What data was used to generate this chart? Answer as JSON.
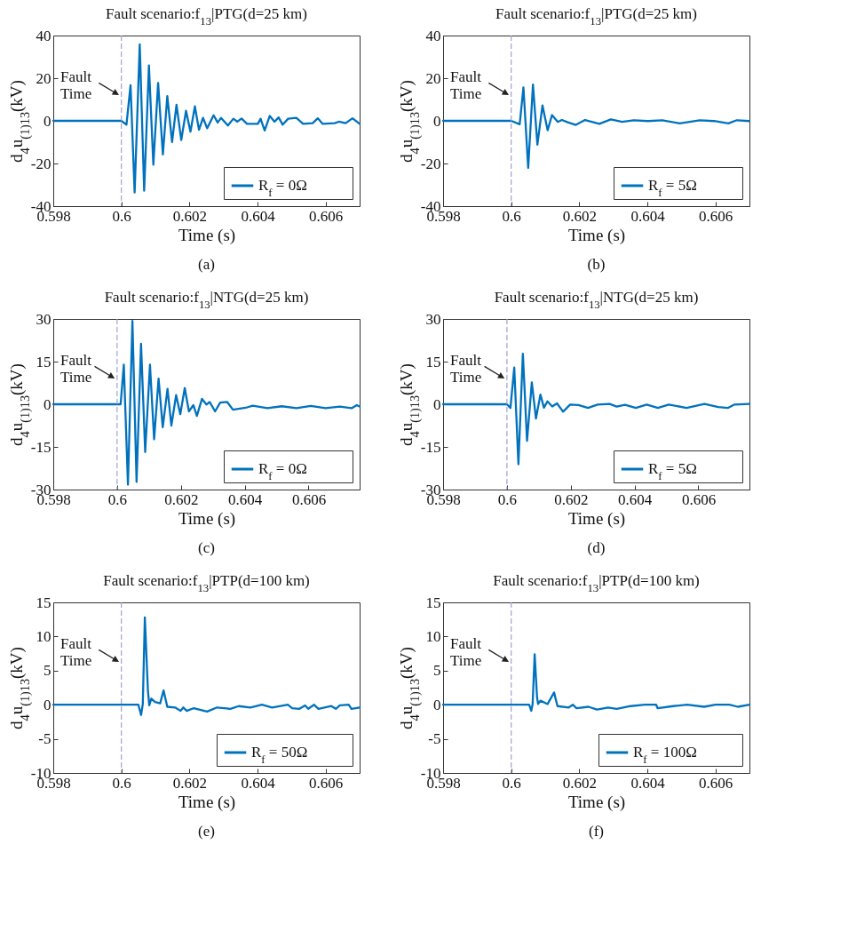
{
  "chart_data": [
    {
      "type": "line",
      "title": "Fault scenario:f$_{13}$|PTG(d=25 km)",
      "xlabel": "Time (s)",
      "ylabel": "d$_{4}$u$_{(1)13}$(kV)",
      "xlim": [
        0.598,
        0.607
      ],
      "xticks": [
        0.598,
        0.6,
        0.602,
        0.604,
        0.606
      ],
      "ylim": [
        -40,
        40
      ],
      "yticks": [
        -40,
        -20,
        0,
        20,
        40
      ],
      "legend": "bottom right",
      "series": [
        {
          "name": "R$_{f}$ = 0Ω",
          "color": "#0072bd",
          "x": [
            0.598,
            0.6,
            0.60015,
            0.60027,
            0.60039,
            0.60054,
            0.60067,
            0.60081,
            0.60094,
            0.60108,
            0.60122,
            0.60135,
            0.60149,
            0.60162,
            0.60176,
            0.6019,
            0.60203,
            0.60216,
            0.60228,
            0.6024,
            0.60252,
            0.60271,
            0.60283,
            0.60293,
            0.60313,
            0.60329,
            0.60341,
            0.60353,
            0.60369,
            0.60401,
            0.60409,
            0.60421,
            0.60436,
            0.6045,
            0.60462,
            0.60474,
            0.6049,
            0.60514,
            0.60534,
            0.60562,
            0.60577,
            0.60591,
            0.60627,
            0.60639,
            0.60659,
            0.60679,
            0.607
          ],
          "values": [
            0,
            0,
            -1.8,
            16.7,
            -33.6,
            35.9,
            -32.8,
            26,
            -20.6,
            17.8,
            -15.8,
            11.6,
            -9.9,
            7.5,
            -9,
            4.7,
            -5.1,
            6.8,
            -4.2,
            1.4,
            -3.5,
            2.6,
            -0.8,
            1.4,
            -2.2,
            1,
            -0.4,
            1.1,
            -1.4,
            -1.4,
            1,
            -4.5,
            2.3,
            -0.4,
            1.6,
            -1.8,
            1,
            1.4,
            -1.4,
            -1.1,
            1.2,
            -1.4,
            -1.1,
            -0.4,
            -1.1,
            1.2,
            -1.4
          ]
        }
      ],
      "ref_lines": [
        {
          "axis": "x",
          "value": 0.6,
          "color": "#a0a0d0",
          "line_style": "dashed"
        }
      ],
      "annotations": [
        "Fault Time",
        "(a)"
      ]
    },
    {
      "type": "line",
      "title": "Fault scenario:f$_{13}$|PTG(d=25 km)",
      "xlabel": "Time (s)",
      "ylabel": "d$_{4}$u$_{(1)13}$(kV)",
      "xlim": [
        0.598,
        0.607
      ],
      "xticks": [
        0.598,
        0.6,
        0.602,
        0.604,
        0.606
      ],
      "ylim": [
        -40,
        40
      ],
      "yticks": [
        -40,
        -20,
        0,
        20,
        40
      ],
      "legend": "bottom right",
      "series": [
        {
          "name": "R$_{f}$ = 5Ω",
          "color": "#0072bd",
          "x": [
            0.598,
            0.6,
            0.60025,
            0.60036,
            0.6005,
            0.60064,
            0.60077,
            0.60092,
            0.60107,
            0.6012,
            0.60137,
            0.60149,
            0.60166,
            0.6019,
            0.60217,
            0.60259,
            0.60293,
            0.60326,
            0.6036,
            0.60402,
            0.60444,
            0.60495,
            0.60554,
            0.60596,
            0.60638,
            0.60663,
            0.607
          ],
          "values": [
            0,
            0,
            -1.6,
            15.7,
            -22.1,
            17,
            -11.2,
            7.2,
            -4.4,
            2.7,
            -0.5,
            0.4,
            -0.7,
            -1.9,
            0.4,
            -1.4,
            0.7,
            -0.5,
            0.3,
            -0.1,
            0.3,
            -1.2,
            0.3,
            -0.1,
            -1.2,
            0.3,
            -0.1
          ]
        }
      ],
      "ref_lines": [
        {
          "axis": "x",
          "value": 0.6,
          "color": "#a0a0d0",
          "line_style": "dashed"
        }
      ],
      "annotations": [
        "Fault Time",
        "(b)"
      ]
    },
    {
      "type": "line",
      "title": "Fault scenario:f$_{13}$|NTG(d=25 km)",
      "xlabel": "Time (s)",
      "ylabel": "d$_{4}$u$_{(1)13}$(kV)",
      "xlim": [
        0.598,
        0.6076
      ],
      "xticks": [
        0.598,
        0.6,
        0.602,
        0.604,
        0.606
      ],
      "ylim": [
        -30,
        30
      ],
      "yticks": [
        -30,
        -15,
        0,
        15,
        30
      ],
      "legend": "bottom right",
      "series": [
        {
          "name": "R$_{f}$ = 0Ω",
          "color": "#0072bd",
          "x": [
            0.598,
            0.6,
            0.60011,
            0.60021,
            0.60034,
            0.60048,
            0.60061,
            0.60075,
            0.60088,
            0.60103,
            0.60116,
            0.6013,
            0.60143,
            0.60158,
            0.6017,
            0.60185,
            0.60198,
            0.60212,
            0.60225,
            0.60239,
            0.6025,
            0.60266,
            0.6028,
            0.6029,
            0.60307,
            0.60323,
            0.60345,
            0.60363,
            0.60407,
            0.60425,
            0.60471,
            0.60516,
            0.60562,
            0.60607,
            0.60653,
            0.60698,
            0.60735,
            0.60751,
            0.6076
          ],
          "values": [
            0,
            0,
            0,
            13.9,
            -28.3,
            29.3,
            -27.3,
            21.3,
            -16.8,
            13.9,
            -12.3,
            9,
            -8.1,
            5.4,
            -7.5,
            3.2,
            -3.5,
            5.7,
            -2.5,
            -0.3,
            -4.1,
            1.9,
            -0.1,
            0.8,
            -2.5,
            0.6,
            0.8,
            -1.9,
            -1.1,
            -0.5,
            -1.4,
            -0.7,
            -1.4,
            -0.6,
            -1.4,
            -0.8,
            -1.4,
            -0.3,
            -0.8
          ]
        }
      ],
      "ref_lines": [
        {
          "axis": "x",
          "value": 0.6,
          "color": "#a0a0d0",
          "line_style": "dashed"
        }
      ],
      "annotations": [
        "Fault Time",
        "(c)"
      ]
    },
    {
      "type": "line",
      "title": "Fault scenario:f$_{13}$|NTG(d=25 km)",
      "xlabel": "Time (s)",
      "ylabel": "d$_{4}$u$_{(1)13}$(kV)",
      "xlim": [
        0.598,
        0.6076
      ],
      "xticks": [
        0.598,
        0.6,
        0.602,
        0.604,
        0.606
      ],
      "ylim": [
        -30,
        30
      ],
      "yticks": [
        -30,
        -15,
        0,
        15,
        30
      ],
      "legend": "bottom right",
      "series": [
        {
          "name": "R$_{f}$ = 5Ω",
          "color": "#0072bd",
          "x": [
            0.598,
            0.6,
            0.60011,
            0.60023,
            0.60036,
            0.6005,
            0.60063,
            0.60078,
            0.60091,
            0.60105,
            0.60116,
            0.60127,
            0.60142,
            0.60157,
            0.60176,
            0.60198,
            0.60224,
            0.60254,
            0.60284,
            0.60322,
            0.60344,
            0.6037,
            0.60404,
            0.60438,
            0.60473,
            0.60507,
            0.60563,
            0.60619,
            0.60662,
            0.60692,
            0.60713,
            0.6076
          ],
          "values": [
            0,
            0,
            -1.3,
            12.9,
            -21.1,
            17.8,
            -12.9,
            7.7,
            -5,
            3.4,
            -1.2,
            1,
            -0.8,
            0.3,
            -2.6,
            -0.1,
            -0.3,
            -1.3,
            -0.1,
            0.1,
            -0.8,
            -0.2,
            -1.3,
            -0.1,
            -1.3,
            -0.1,
            -1.3,
            0.1,
            -1,
            -1.3,
            -0.1,
            0.1
          ]
        }
      ],
      "ref_lines": [
        {
          "axis": "x",
          "value": 0.6,
          "color": "#a0a0d0",
          "line_style": "dashed"
        }
      ],
      "annotations": [
        "Fault Time",
        "(d)"
      ]
    },
    {
      "type": "line",
      "title": "Fault scenario:f$_{13}$|PTP(d=100 km)",
      "xlabel": "Time (s)",
      "ylabel": "d$_{4}$u$_{(1)13}$(kV)",
      "xlim": [
        0.598,
        0.607
      ],
      "xticks": [
        0.598,
        0.6,
        0.602,
        0.604,
        0.606
      ],
      "ylim": [
        -10,
        15
      ],
      "yticks": [
        -10,
        -5,
        0,
        5,
        10,
        15
      ],
      "legend": "bottom right",
      "series": [
        {
          "name": "R$_{f}$ = 50Ω",
          "color": "#0072bd",
          "x": [
            0.598,
            0.6005,
            0.60058,
            0.60063,
            0.60069,
            0.60078,
            0.60082,
            0.60088,
            0.60099,
            0.60114,
            0.60124,
            0.60135,
            0.60158,
            0.60174,
            0.60182,
            0.60192,
            0.60213,
            0.60252,
            0.60281,
            0.6032,
            0.60345,
            0.60379,
            0.60413,
            0.60443,
            0.60489,
            0.60502,
            0.60523,
            0.6054,
            0.60549,
            0.60566,
            0.60579,
            0.60617,
            0.6063,
            0.60642,
            0.60668,
            0.60676,
            0.607
          ],
          "values": [
            0,
            0,
            -1.5,
            0.1,
            12.8,
            2.1,
            -0.1,
            0.9,
            0.4,
            0.2,
            2.1,
            -0.3,
            -0.4,
            -0.9,
            -0.4,
            -0.9,
            -0.5,
            -1,
            -0.4,
            -0.6,
            -0.2,
            -0.4,
            0,
            -0.4,
            0,
            -0.5,
            -0.6,
            -0.1,
            -0.6,
            0,
            -0.6,
            -0.2,
            -0.6,
            -0.1,
            0,
            -0.6,
            -0.4
          ]
        }
      ],
      "ref_lines": [
        {
          "axis": "x",
          "value": 0.6,
          "color": "#a0a0d0",
          "line_style": "dashed"
        }
      ],
      "annotations": [
        "Fault Time",
        "(e)"
      ]
    },
    {
      "type": "line",
      "title": "Fault scenario:f$_{13}$|PTP(d=100 km)",
      "xlabel": "Time (s)",
      "ylabel": "d$_{4}$u$_{(1)13}$(kV)",
      "xlim": [
        0.598,
        0.607
      ],
      "xticks": [
        0.598,
        0.6,
        0.602,
        0.604,
        0.606
      ],
      "ylim": [
        -10,
        15
      ],
      "yticks": [
        -10,
        -5,
        0,
        5,
        10,
        15
      ],
      "legend": "bottom right",
      "series": [
        {
          "name": "R$_{f}$ = 100Ω",
          "color": "#0072bd",
          "x": [
            0.598,
            0.60053,
            0.60059,
            0.60063,
            0.60069,
            0.60076,
            0.60079,
            0.60086,
            0.60107,
            0.60126,
            0.60136,
            0.60169,
            0.60181,
            0.60192,
            0.60227,
            0.60252,
            0.60285,
            0.6031,
            0.60351,
            0.60393,
            0.60426,
            0.6043,
            0.60476,
            0.60517,
            0.60567,
            0.606,
            0.60641,
            0.60666,
            0.607
          ],
          "values": [
            0,
            0,
            -0.9,
            0.1,
            7.4,
            1.1,
            0.1,
            0.6,
            0.1,
            1.8,
            -0.2,
            -0.4,
            0,
            -0.5,
            -0.3,
            -0.7,
            -0.4,
            -0.6,
            -0.2,
            0,
            0,
            -0.5,
            -0.2,
            0,
            -0.3,
            0,
            0,
            -0.3,
            0
          ]
        }
      ],
      "ref_lines": [
        {
          "axis": "x",
          "value": 0.6,
          "color": "#a0a0d0",
          "line_style": "dashed"
        }
      ],
      "annotations": [
        "Fault Time",
        "(f)"
      ]
    }
  ]
}
